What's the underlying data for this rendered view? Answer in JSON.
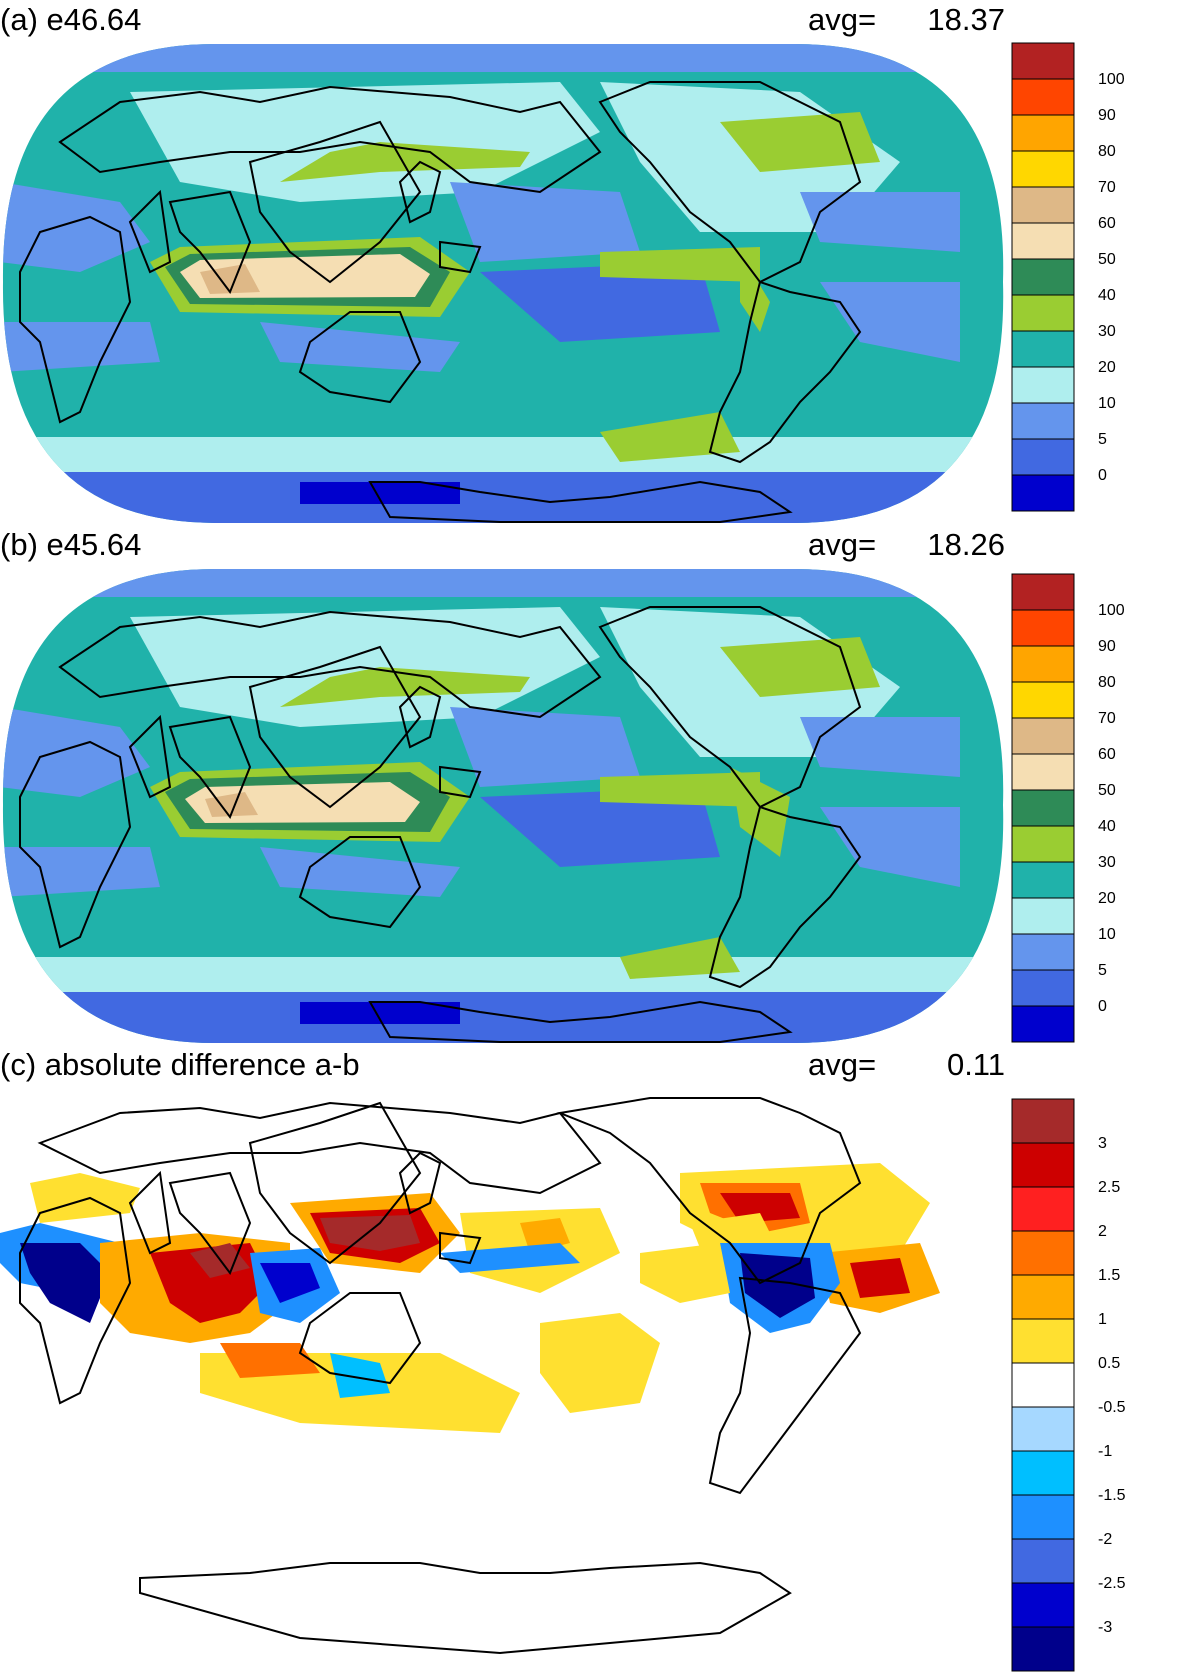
{
  "panels": [
    {
      "title": "(a) e46.64",
      "avg_label": "avg=",
      "avg_value": "18.37",
      "legend_labels": [
        "100",
        "90",
        "80",
        "70",
        "60",
        "50",
        "40",
        "30",
        "20",
        "10",
        "5",
        "0"
      ],
      "legend_colors": [
        "#b22222",
        "#ff4500",
        "#ffa500",
        "#ffd700",
        "#deb887",
        "#f5deb3",
        "#2e8b57",
        "#9acd32",
        "#20b2aa",
        "#afeeee",
        "#6495ed",
        "#4169e1",
        "#0000cd"
      ]
    },
    {
      "title": "(b) e45.64",
      "avg_label": "avg=",
      "avg_value": "18.26",
      "legend_labels": [
        "100",
        "90",
        "80",
        "70",
        "60",
        "50",
        "40",
        "30",
        "20",
        "10",
        "5",
        "0"
      ],
      "legend_colors": [
        "#b22222",
        "#ff4500",
        "#ffa500",
        "#ffd700",
        "#deb887",
        "#f5deb3",
        "#2e8b57",
        "#9acd32",
        "#20b2aa",
        "#afeeee",
        "#6495ed",
        "#4169e1",
        "#0000cd"
      ]
    },
    {
      "title": "(c) absolute difference a-b",
      "avg_label": "avg=",
      "avg_value": "0.11",
      "legend_labels": [
        "3",
        "2.5",
        "2",
        "1.5",
        "1",
        "0.5",
        "-0.5",
        "-1",
        "-1.5",
        "-2",
        "-2.5",
        "-3"
      ],
      "legend_colors": [
        "#a52a2a",
        "#cd0000",
        "#ff2020",
        "#ff7000",
        "#ffaa00",
        "#ffe030",
        "#ffffff",
        "#a6d8ff",
        "#00bfff",
        "#1e90ff",
        "#4169e1",
        "#0000cd",
        "#00008b"
      ]
    }
  ]
}
